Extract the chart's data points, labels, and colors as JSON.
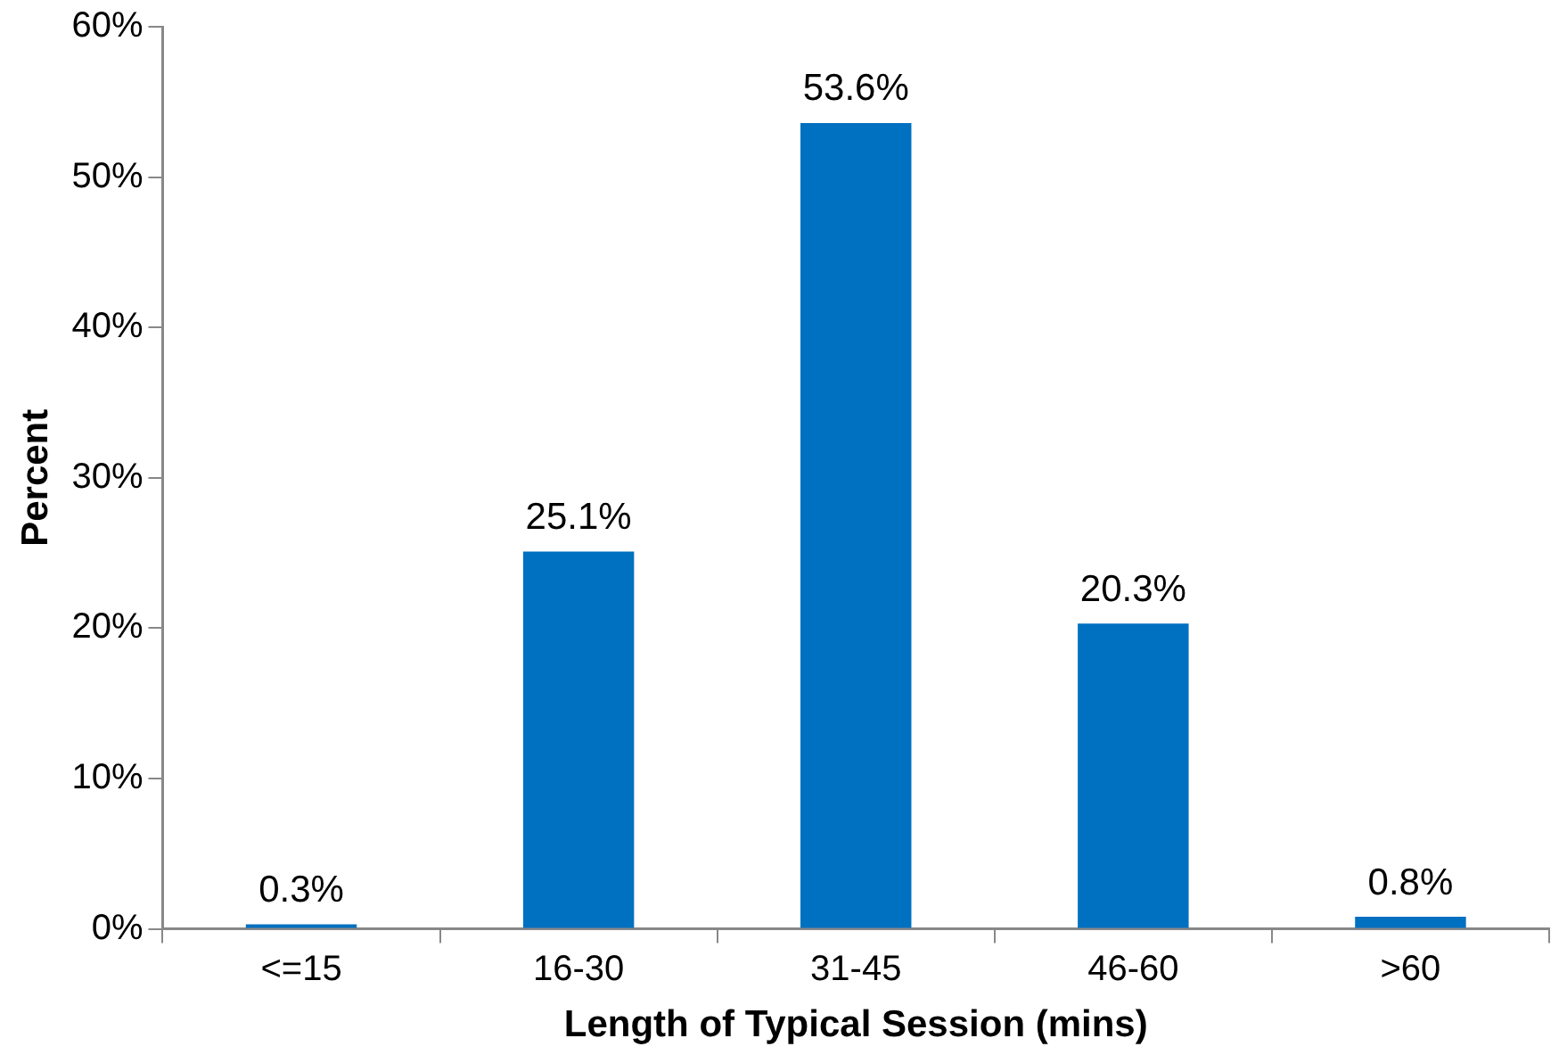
{
  "chart_data": {
    "type": "bar",
    "xlabel": "Length of Typical Session (mins)",
    "ylabel": "Percent",
    "categories": [
      "<=15",
      "16-30",
      "31-45",
      "46-60",
      ">60"
    ],
    "values": [
      0.3,
      25.1,
      53.6,
      20.3,
      0.8
    ],
    "value_labels": [
      "0.3%",
      "25.1%",
      "53.6%",
      "20.3%",
      "0.8%"
    ],
    "color": "#0070c0",
    "ylim": [
      0,
      60
    ],
    "yticks": [
      {
        "value": 0,
        "label": "0%"
      },
      {
        "value": 10,
        "label": "10%"
      },
      {
        "value": 20,
        "label": "20%"
      },
      {
        "value": 30,
        "label": "30%"
      },
      {
        "value": 40,
        "label": "40%"
      },
      {
        "value": 50,
        "label": "50%"
      },
      {
        "value": 60,
        "label": "60%"
      }
    ],
    "grid": false,
    "legend": false
  }
}
